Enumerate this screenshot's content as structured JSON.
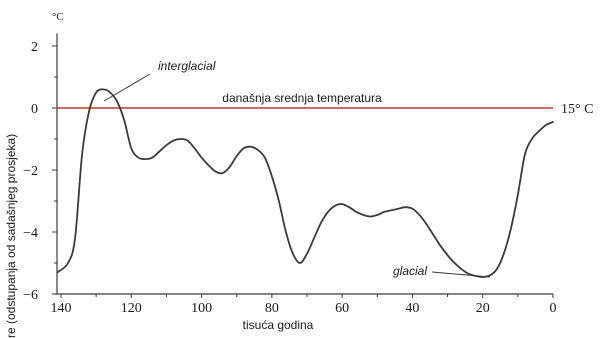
{
  "chart_data": {
    "type": "line",
    "xlabel": "tisuća godina",
    "ylabel": "re (odstupanja od sadašnjeg prosjeka)",
    "y_unit": "°C",
    "xlim": [
      141,
      0
    ],
    "ylim": [
      -6,
      2.6
    ],
    "x_ticks": [
      140,
      120,
      100,
      80,
      60,
      40,
      20,
      0
    ],
    "y_ticks": [
      2,
      0,
      -2,
      -4,
      -6
    ],
    "grid": false,
    "reference_line": {
      "y": 0,
      "label": "današnja srednja temperatura",
      "value_label": "15° C",
      "color": "#c0392b"
    },
    "annotations": [
      {
        "text": "interglacial",
        "x": 126,
        "y": 0.5
      },
      {
        "text": "glacial",
        "x": 17,
        "y": -5.45
      }
    ],
    "series": [
      {
        "color": "#3a3a3a",
        "x": [
          141,
          138,
          136,
          134,
          132,
          130,
          128,
          126,
          124,
          122,
          120,
          118,
          116,
          114,
          112,
          110,
          108,
          106,
          104,
          102,
          100,
          98,
          96,
          94,
          92,
          90,
          88,
          86,
          84,
          82,
          80,
          78,
          76,
          74,
          72,
          70,
          68,
          66,
          64,
          62,
          60,
          58,
          56,
          54,
          52,
          50,
          48,
          46,
          44,
          42,
          40,
          38,
          36,
          34,
          32,
          30,
          28,
          26,
          24,
          22,
          20,
          18,
          16,
          14,
          12,
          10,
          8,
          6,
          4,
          2,
          0
        ],
        "y": [
          -5.3,
          -5.0,
          -4.2,
          -1.5,
          -0.1,
          0.5,
          0.6,
          0.5,
          0.2,
          -0.4,
          -1.3,
          -1.6,
          -1.65,
          -1.6,
          -1.4,
          -1.2,
          -1.05,
          -1.0,
          -1.05,
          -1.3,
          -1.6,
          -1.85,
          -2.05,
          -2.1,
          -1.9,
          -1.55,
          -1.3,
          -1.25,
          -1.35,
          -1.6,
          -2.2,
          -3.0,
          -4.0,
          -4.7,
          -5.0,
          -4.7,
          -4.2,
          -3.7,
          -3.35,
          -3.15,
          -3.1,
          -3.2,
          -3.35,
          -3.45,
          -3.5,
          -3.45,
          -3.35,
          -3.3,
          -3.25,
          -3.2,
          -3.25,
          -3.45,
          -3.75,
          -4.1,
          -4.45,
          -4.75,
          -5.0,
          -5.2,
          -5.35,
          -5.42,
          -5.45,
          -5.4,
          -5.2,
          -4.7,
          -3.9,
          -2.8,
          -1.5,
          -1.0,
          -0.75,
          -0.55,
          -0.45
        ]
      }
    ]
  }
}
